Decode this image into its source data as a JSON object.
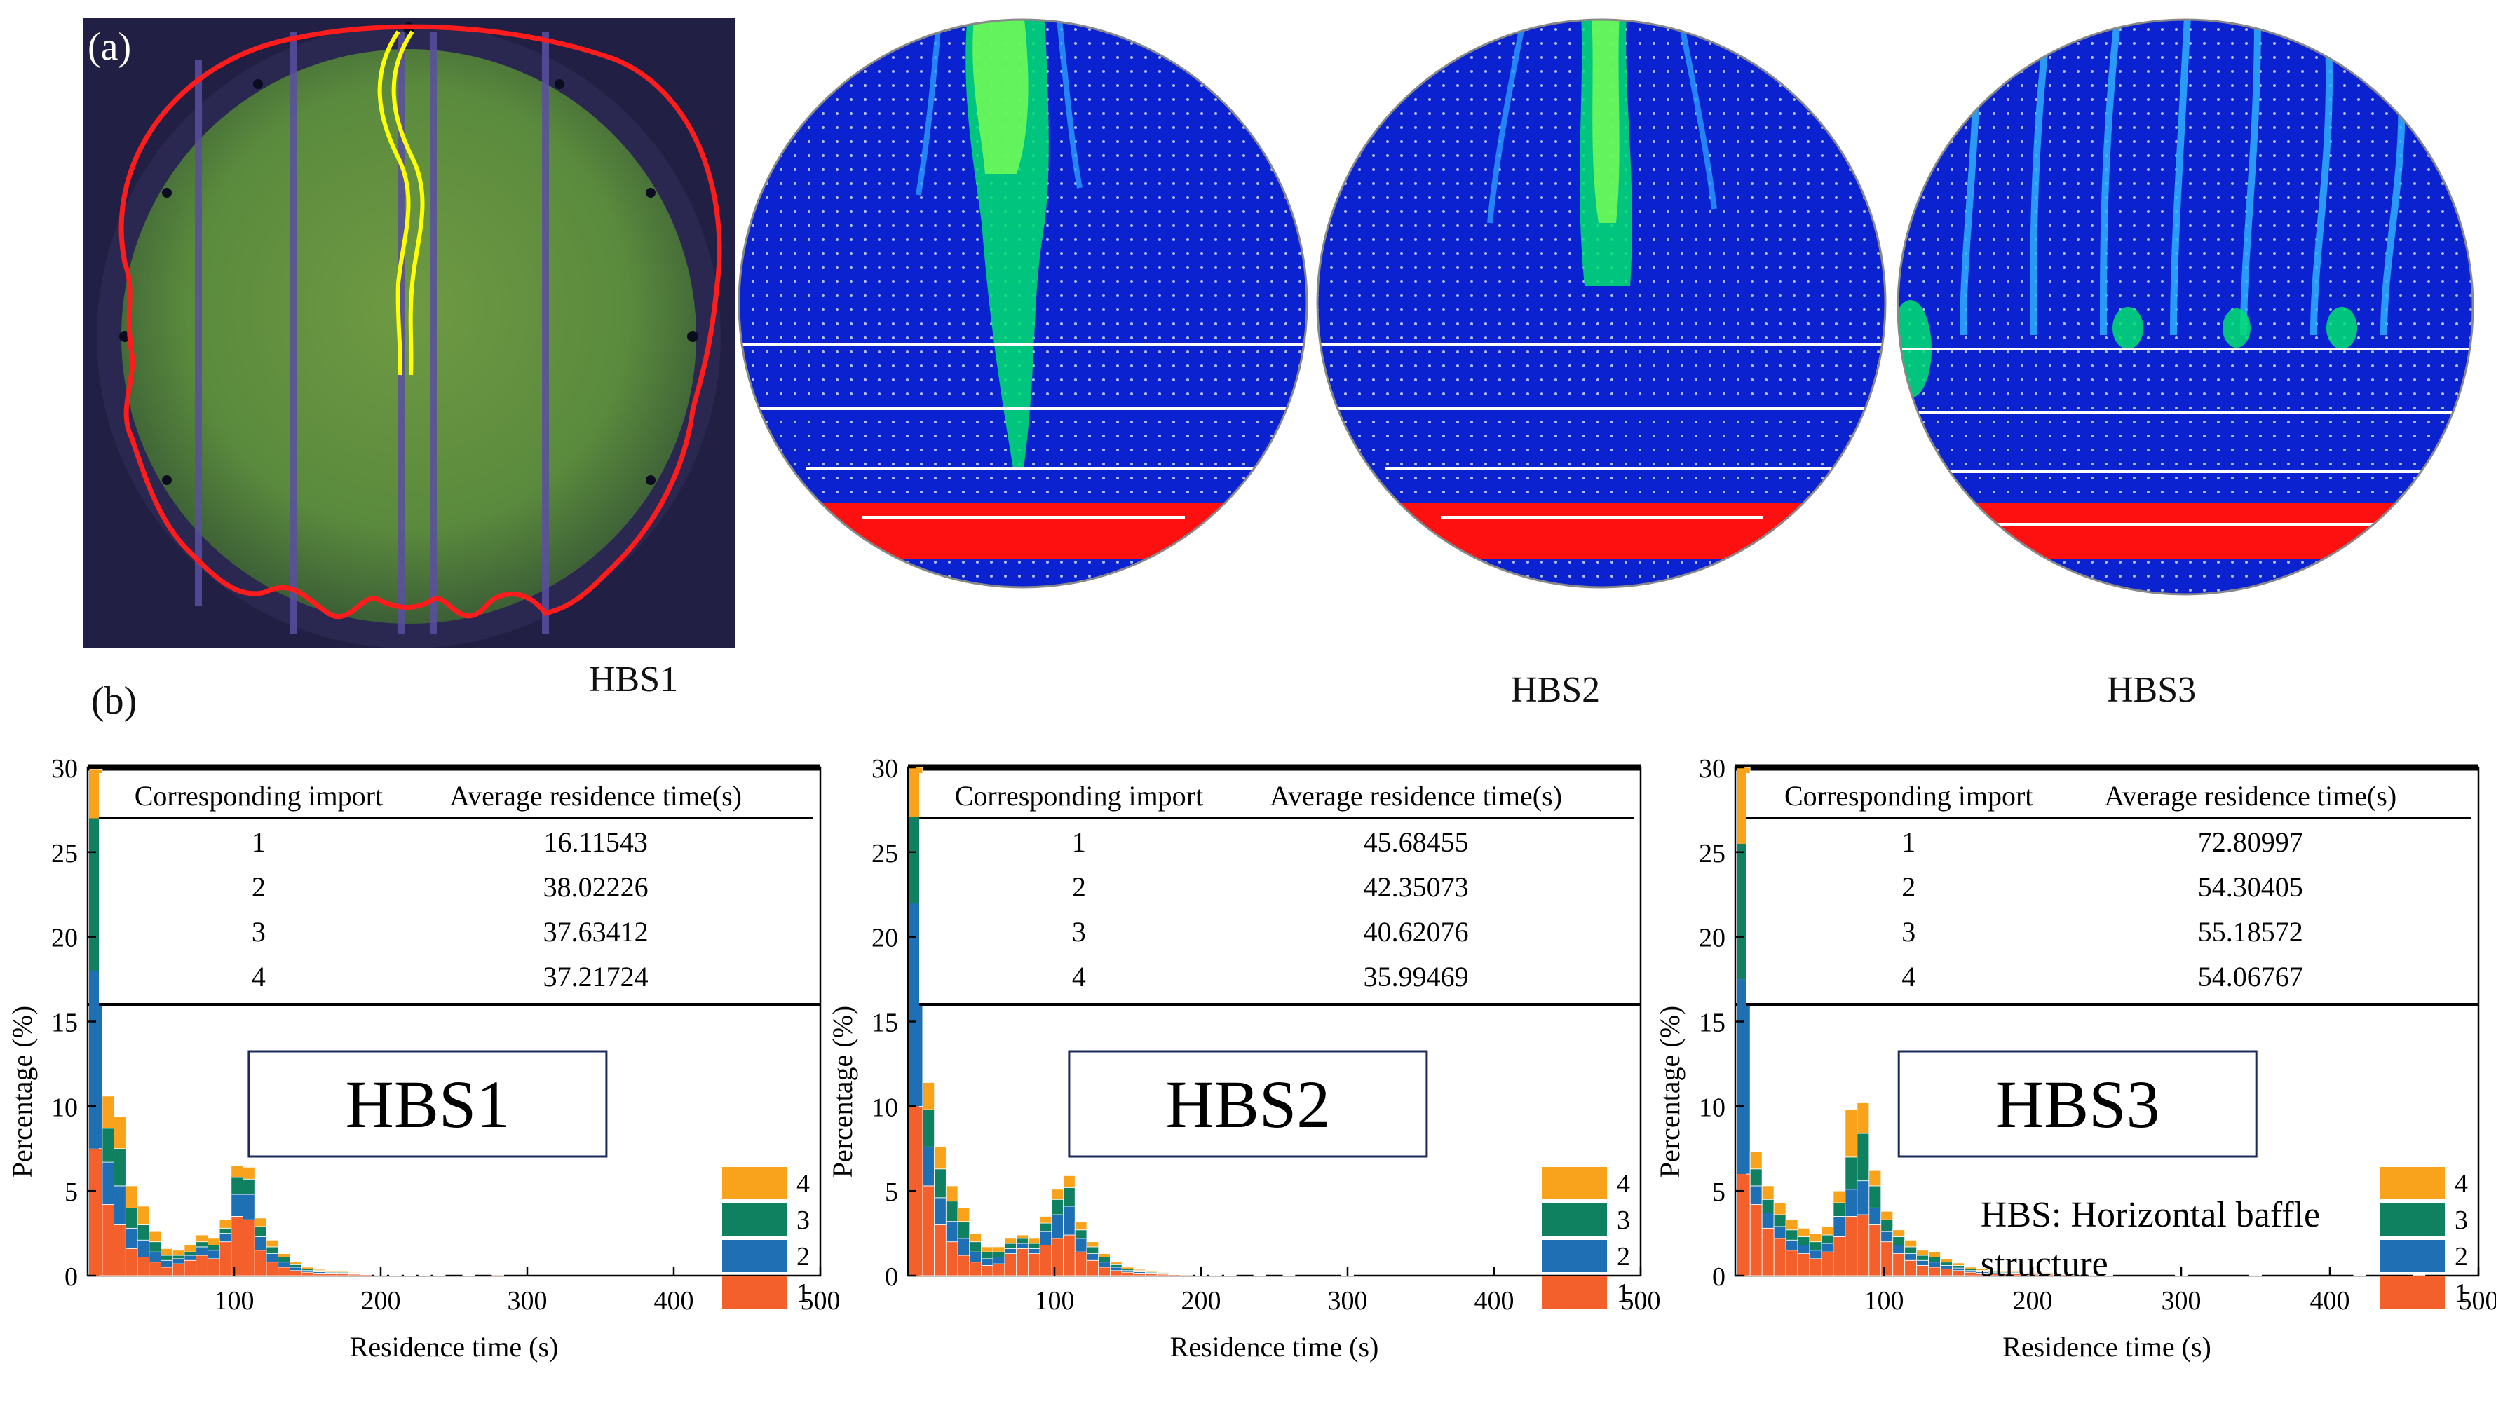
{
  "panel_a": {
    "label": "(a)",
    "photo_icon": "experiment-photo-icon",
    "sim_labels": [
      "HBS1",
      "HBS2",
      "HBS3"
    ]
  },
  "panel_b": {
    "label": "(b)"
  },
  "colors": {
    "series1": "#f4602b",
    "series2": "#1f6fb4",
    "series3": "#0f8060",
    "series4": "#f9a31c",
    "sim_background": "#0b22d0",
    "outline_red": "#ff1c1c",
    "streak_yellow": "#ffff00"
  },
  "chart_data": [
    {
      "type": "bar",
      "stacked": true,
      "title": "HBS1",
      "xlabel": "Residence time (s)",
      "ylabel": "Percentage (%)",
      "xlim": [
        0,
        500
      ],
      "ylim": [
        0,
        30
      ],
      "xticks": [
        "100",
        "200",
        "300",
        "400",
        "500"
      ],
      "yticks": [
        "0",
        "5",
        "10",
        "15",
        "20",
        "25",
        "30"
      ],
      "legend": [
        "4",
        "3",
        "2",
        "1"
      ],
      "table": {
        "headers": [
          "Corresponding import",
          "Average residence time(s)"
        ],
        "rows": [
          [
            "1",
            "16.11543"
          ],
          [
            "2",
            "38.02226"
          ],
          [
            "3",
            "37.63412"
          ],
          [
            "4",
            "37.21724"
          ]
        ]
      },
      "bin_width": 8,
      "x": [
        6,
        14,
        22,
        30,
        38,
        46,
        54,
        62,
        70,
        78,
        86,
        94,
        102,
        110,
        118,
        126,
        134,
        142,
        150,
        158,
        166,
        174,
        182,
        190,
        200,
        210,
        220,
        230,
        240,
        260,
        280
      ],
      "series": [
        {
          "name": "1",
          "values": [
            7.5,
            4.2,
            3.0,
            1.6,
            1.1,
            0.8,
            0.5,
            0.7,
            0.9,
            1.2,
            1.0,
            2.0,
            3.5,
            3.3,
            1.5,
            0.8,
            0.5,
            0.3,
            0.2,
            0.15,
            0.1,
            0.1,
            0.08,
            0.06,
            0.04,
            0.03,
            0.03,
            0.02,
            0.02,
            0.02,
            0.05
          ]
        },
        {
          "name": "2",
          "values": [
            10.5,
            2.5,
            2.3,
            1.2,
            1.0,
            0.6,
            0.4,
            0.3,
            0.3,
            0.5,
            0.5,
            0.5,
            1.3,
            1.5,
            0.8,
            0.5,
            0.3,
            0.2,
            0.1,
            0.08,
            0.05,
            0.05,
            0.04,
            0.03,
            0.02,
            0.02,
            0.02,
            0.01,
            0.01,
            0.01,
            0.03
          ]
        },
        {
          "name": "3",
          "values": [
            9.0,
            2.0,
            2.2,
            1.2,
            0.9,
            0.6,
            0.3,
            0.2,
            0.2,
            0.3,
            0.3,
            0.3,
            1.0,
            0.9,
            0.6,
            0.4,
            0.3,
            0.15,
            0.1,
            0.07,
            0.05,
            0.05,
            0.03,
            0.03,
            0.02,
            0.02,
            0.01,
            0.01,
            0.01,
            0.01,
            0.02
          ]
        },
        {
          "name": "4",
          "values": [
            2.9,
            1.9,
            1.9,
            1.3,
            1.1,
            0.6,
            0.4,
            0.3,
            0.4,
            0.4,
            0.4,
            0.5,
            0.7,
            0.7,
            0.5,
            0.4,
            0.2,
            0.15,
            0.1,
            0.07,
            0.05,
            0.05,
            0.04,
            0.03,
            0.02,
            0.02,
            0.02,
            0.01,
            0.01,
            0.01,
            0.02
          ]
        }
      ]
    },
    {
      "type": "bar",
      "stacked": true,
      "title": "HBS2",
      "xlabel": "Residence time (s)",
      "ylabel": "Percentage (%)",
      "xlim": [
        0,
        500
      ],
      "ylim": [
        0,
        30
      ],
      "xticks": [
        "100",
        "200",
        "300",
        "400",
        "500"
      ],
      "yticks": [
        "0",
        "5",
        "10",
        "15",
        "20",
        "25",
        "30"
      ],
      "legend": [
        "4",
        "3",
        "2",
        "1"
      ],
      "table": {
        "headers": [
          "Corresponding import",
          "Average residence time(s)"
        ],
        "rows": [
          [
            "1",
            "45.68455"
          ],
          [
            "2",
            "42.35073"
          ],
          [
            "3",
            "40.62076"
          ],
          [
            "4",
            "35.99469"
          ]
        ]
      },
      "bin_width": 8,
      "x": [
        6,
        14,
        22,
        30,
        38,
        46,
        54,
        62,
        70,
        78,
        86,
        94,
        102,
        110,
        118,
        126,
        134,
        142,
        150,
        158,
        166,
        174,
        182,
        190,
        200,
        210,
        220,
        240,
        260,
        300
      ],
      "series": [
        {
          "name": "1",
          "values": [
            10.0,
            5.3,
            3.0,
            2.0,
            1.2,
            0.8,
            0.6,
            0.7,
            1.3,
            1.6,
            1.3,
            1.8,
            2.2,
            2.4,
            1.4,
            0.9,
            0.5,
            0.3,
            0.2,
            0.15,
            0.1,
            0.08,
            0.06,
            0.05,
            0.03,
            0.03,
            0.02,
            0.02,
            0.02,
            0.02
          ]
        },
        {
          "name": "2",
          "values": [
            12.0,
            2.3,
            1.6,
            1.2,
            1.0,
            0.6,
            0.4,
            0.4,
            0.3,
            0.3,
            0.3,
            0.8,
            1.4,
            1.7,
            0.8,
            0.4,
            0.3,
            0.2,
            0.1,
            0.08,
            0.05,
            0.04,
            0.03,
            0.03,
            0.02,
            0.02,
            0.01,
            0.01,
            0.01,
            0.01
          ]
        },
        {
          "name": "3",
          "values": [
            5.1,
            2.2,
            1.7,
            1.2,
            1.0,
            0.6,
            0.4,
            0.3,
            0.3,
            0.3,
            0.3,
            0.5,
            0.9,
            1.1,
            0.5,
            0.4,
            0.3,
            0.15,
            0.1,
            0.07,
            0.05,
            0.04,
            0.03,
            0.03,
            0.02,
            0.02,
            0.01,
            0.01,
            0.01,
            0.01
          ]
        },
        {
          "name": "4",
          "values": [
            2.9,
            1.6,
            1.3,
            0.9,
            0.8,
            0.5,
            0.3,
            0.3,
            0.3,
            0.2,
            0.3,
            0.4,
            0.6,
            0.7,
            0.5,
            0.3,
            0.2,
            0.15,
            0.1,
            0.07,
            0.05,
            0.04,
            0.03,
            0.03,
            0.02,
            0.02,
            0.01,
            0.01,
            0.01,
            0.01
          ]
        }
      ]
    },
    {
      "type": "bar",
      "stacked": true,
      "title": "HBS3",
      "xlabel": "Residence time (s)",
      "ylabel": "Percentage (%)",
      "xlim": [
        0,
        500
      ],
      "ylim": [
        0,
        30
      ],
      "xticks": [
        "100",
        "200",
        "300",
        "400",
        "500"
      ],
      "yticks": [
        "0",
        "5",
        "10",
        "15",
        "20",
        "25",
        "30"
      ],
      "legend": [
        "4",
        "3",
        "2",
        "1"
      ],
      "annotation": [
        "HBS: Horizontal baffle",
        "structure"
      ],
      "table": {
        "headers": [
          "Corresponding import",
          "Average residence time(s)"
        ],
        "rows": [
          [
            "1",
            "72.80997"
          ],
          [
            "2",
            "54.30405"
          ],
          [
            "3",
            "55.18572"
          ],
          [
            "4",
            "54.06767"
          ]
        ]
      },
      "bin_width": 8,
      "x": [
        6,
        14,
        22,
        30,
        38,
        46,
        54,
        62,
        70,
        78,
        86,
        94,
        102,
        110,
        118,
        126,
        134,
        142,
        150,
        158,
        166,
        174,
        182,
        190,
        200,
        210,
        220,
        230,
        240,
        250,
        300,
        350,
        420,
        460
      ],
      "series": [
        {
          "name": "1",
          "values": [
            6.0,
            4.2,
            2.8,
            2.2,
            1.5,
            1.3,
            1.0,
            1.4,
            2.3,
            3.5,
            3.6,
            3.0,
            2.0,
            1.3,
            0.9,
            0.6,
            0.5,
            0.4,
            0.3,
            0.2,
            0.15,
            0.12,
            0.1,
            0.1,
            0.08,
            0.08,
            0.06,
            0.05,
            0.04,
            0.03,
            0.02,
            0.02,
            0.02,
            0.05
          ]
        },
        {
          "name": "2",
          "values": [
            11.5,
            1.1,
            0.9,
            0.7,
            0.6,
            0.5,
            0.5,
            0.5,
            1.2,
            1.6,
            2.0,
            1.0,
            0.6,
            0.5,
            0.4,
            0.3,
            0.3,
            0.2,
            0.15,
            0.1,
            0.08,
            0.06,
            0.05,
            0.05,
            0.04,
            0.04,
            0.03,
            0.02,
            0.02,
            0.02,
            0.01,
            0.01,
            0.01,
            0.03
          ]
        },
        {
          "name": "3",
          "values": [
            8.0,
            1.0,
            0.8,
            0.7,
            0.6,
            0.5,
            0.5,
            0.5,
            0.8,
            1.9,
            2.8,
            1.3,
            0.7,
            0.5,
            0.4,
            0.3,
            0.3,
            0.2,
            0.15,
            0.1,
            0.08,
            0.06,
            0.05,
            0.05,
            0.04,
            0.04,
            0.03,
            0.02,
            0.02,
            0.02,
            0.01,
            0.01,
            0.01,
            0.02
          ]
        },
        {
          "name": "4",
          "values": [
            4.5,
            1.0,
            0.8,
            0.7,
            0.6,
            0.5,
            0.5,
            0.5,
            0.7,
            2.8,
            1.8,
            0.9,
            0.5,
            0.4,
            0.4,
            0.3,
            0.3,
            0.2,
            0.15,
            0.1,
            0.08,
            0.06,
            0.05,
            0.05,
            0.04,
            0.04,
            0.03,
            0.02,
            0.02,
            0.02,
            0.01,
            0.01,
            0.01,
            0.02
          ]
        }
      ]
    }
  ]
}
